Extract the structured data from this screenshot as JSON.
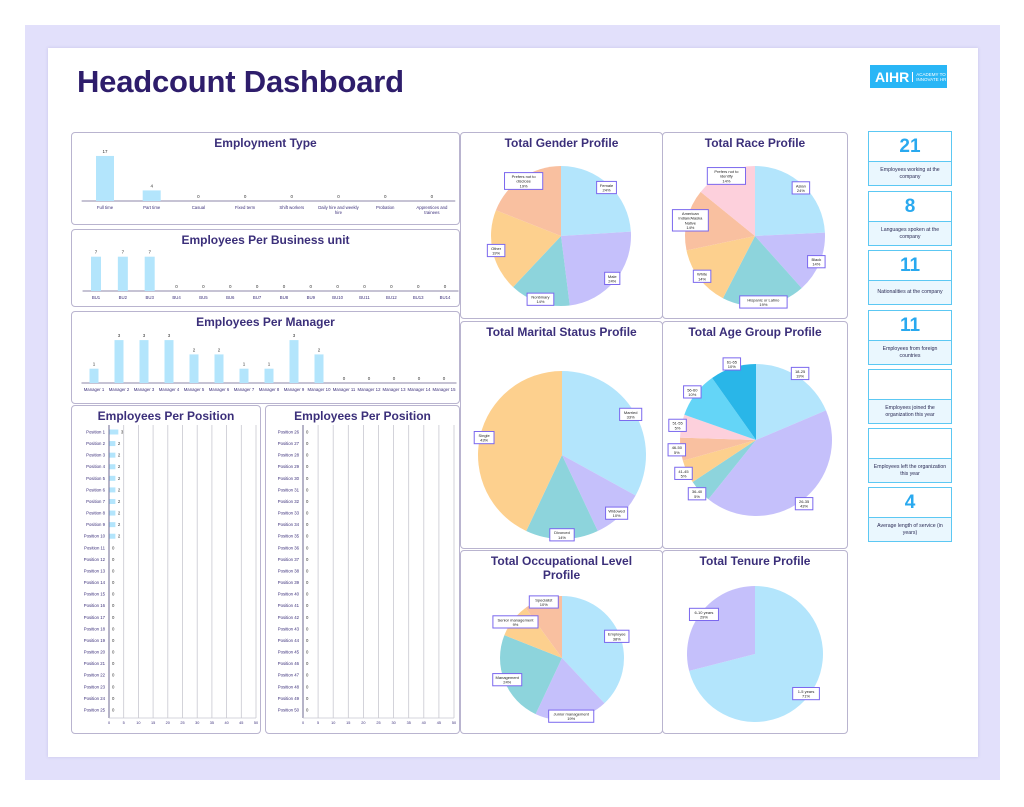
{
  "header": {
    "title": "Headcount Dashboard",
    "logo_text": "AIHR",
    "logo_tagline": "ACADEMY TO INNOVATE HR"
  },
  "colors": {
    "title": "#2e1d6b",
    "bar": "#b3e5fc",
    "kpi_accent": "#29a9ef",
    "pie": [
      "#b3e5fc",
      "#c5c0fb",
      "#8dd4dc",
      "#fdd08e",
      "#f9c0a0",
      "#fdd0dc",
      "#64d5f7",
      "#29b6e8"
    ]
  },
  "kpis": [
    {
      "value": "21",
      "label": "Employees working at the company"
    },
    {
      "value": "8",
      "label": "Languages spoken at the company"
    },
    {
      "value": "11",
      "label": "Nationalities at the company"
    },
    {
      "value": "11",
      "label": "Employees from foreign countries"
    },
    {
      "value": "",
      "label": "Employees joined the organization this year"
    },
    {
      "value": "",
      "label": "Employees left the organization this year"
    },
    {
      "value": "4",
      "label": "Average length of service (in years)"
    }
  ],
  "chart_data": [
    {
      "id": "employment",
      "type": "bar",
      "title": "Employment Type",
      "categories": [
        "Full time",
        "Part time",
        "Casual",
        "Fixed term",
        "Shift workers",
        "Daily hire and weekly hire",
        "Probation",
        "Apprentices and trainees"
      ],
      "values": [
        17,
        4,
        0,
        0,
        0,
        0,
        0,
        0
      ]
    },
    {
      "id": "bu",
      "type": "bar",
      "title": "Employees Per Business unit",
      "categories": [
        "BU1",
        "BU2",
        "BU3",
        "BU4",
        "BU5",
        "BU6",
        "BU7",
        "BU8",
        "BU9",
        "BU10",
        "BU11",
        "BU12",
        "BU13",
        "BU14"
      ],
      "values": [
        7,
        7,
        7,
        0,
        0,
        0,
        0,
        0,
        0,
        0,
        0,
        0,
        0,
        0
      ]
    },
    {
      "id": "manager",
      "type": "bar",
      "title": "Employees Per Manager",
      "categories": [
        "Manager 1",
        "Manager 2",
        "Manager 3",
        "Manager 4",
        "Manager 5",
        "Manager 6",
        "Manager 7",
        "Manager 8",
        "Manager 9",
        "Manager 10",
        "Manager 11",
        "Manager 12",
        "Manager 13",
        "Manager 14",
        "Manager 15"
      ],
      "values": [
        1,
        3,
        3,
        3,
        2,
        2,
        1,
        1,
        3,
        2,
        0,
        0,
        0,
        0,
        0
      ]
    },
    {
      "id": "pos1",
      "type": "bar",
      "orientation": "horizontal",
      "title": "Employees Per Position",
      "xlim": [
        0,
        50
      ],
      "xticks": [
        0,
        5,
        10,
        15,
        20,
        25,
        30,
        35,
        40,
        45,
        50
      ],
      "grid": true,
      "categories": [
        "Position 1",
        "Position 2",
        "Position 3",
        "Position 4",
        "Position 5",
        "Position 6",
        "Position 7",
        "Position 8",
        "Position 9",
        "Position 10",
        "Position 11",
        "Position 12",
        "Position 13",
        "Position 14",
        "Position 15",
        "Position 16",
        "Position 17",
        "Position 18",
        "Position 19",
        "Position 20",
        "Position 21",
        "Position 22",
        "Position 23",
        "Position 24",
        "Position 25"
      ],
      "values": [
        3,
        2,
        2,
        2,
        2,
        2,
        2,
        2,
        2,
        2,
        0,
        0,
        0,
        0,
        0,
        0,
        0,
        0,
        0,
        0,
        0,
        0,
        0,
        0,
        0
      ]
    },
    {
      "id": "pos2",
      "type": "bar",
      "orientation": "horizontal",
      "title": "Employees Per Position",
      "xlim": [
        0,
        50
      ],
      "xticks": [
        0,
        5,
        10,
        15,
        20,
        25,
        30,
        35,
        40,
        45,
        50
      ],
      "grid": true,
      "categories": [
        "Position 26",
        "Position 27",
        "Position 28",
        "Position 29",
        "Position 30",
        "Position 31",
        "Position 32",
        "Position 33",
        "Position 34",
        "Position 35",
        "Position 36",
        "Position 37",
        "Position 38",
        "Position 39",
        "Position 40",
        "Position 41",
        "Position 42",
        "Position 43",
        "Position 44",
        "Position 45",
        "Position 46",
        "Position 47",
        "Position 48",
        "Position 49",
        "Position 50"
      ],
      "values": [
        0,
        0,
        0,
        0,
        0,
        0,
        0,
        0,
        0,
        0,
        0,
        0,
        0,
        0,
        0,
        0,
        0,
        0,
        0,
        0,
        0,
        0,
        0,
        0,
        0
      ]
    },
    {
      "id": "gender",
      "type": "pie",
      "title": "Total Gender Profile",
      "categories": [
        "Female",
        "Male",
        "Nonbinary",
        "Other",
        "Prefers not to disclose"
      ],
      "values": [
        24,
        24,
        14,
        19,
        19
      ]
    },
    {
      "id": "race",
      "type": "pie",
      "title": "Total Race Profile",
      "categories": [
        "Asian",
        "Black",
        "Hispanic or Latino",
        "White",
        "American Indian/Alaska Native",
        "Prefers not to identify"
      ],
      "values": [
        24,
        14,
        19,
        14,
        14,
        14
      ]
    },
    {
      "id": "marital",
      "type": "pie",
      "title": "Total Marital Status Profile",
      "categories": [
        "Married",
        "Widowed",
        "Divorced",
        "Single"
      ],
      "values": [
        33,
        10,
        14,
        43
      ]
    },
    {
      "id": "age",
      "type": "pie",
      "title": "Total Age Group Profile",
      "categories": [
        "18-25",
        "26-35",
        "36-40",
        "41-45",
        "46-50",
        "51-55",
        "56-60",
        "61-65"
      ],
      "values": [
        19,
        43,
        5,
        5,
        5,
        5,
        10,
        10
      ]
    },
    {
      "id": "occupation",
      "type": "pie",
      "title": "Total Occupational Level Profile",
      "categories": [
        "Employee",
        "Junior management",
        "Management",
        "Senior management",
        "Specialist"
      ],
      "values": [
        38,
        19,
        24,
        9,
        10
      ]
    },
    {
      "id": "tenure",
      "type": "pie",
      "title": "Total Tenure Profile",
      "categories": [
        "1-5 years",
        "6-10 years"
      ],
      "values": [
        71,
        29
      ]
    }
  ]
}
